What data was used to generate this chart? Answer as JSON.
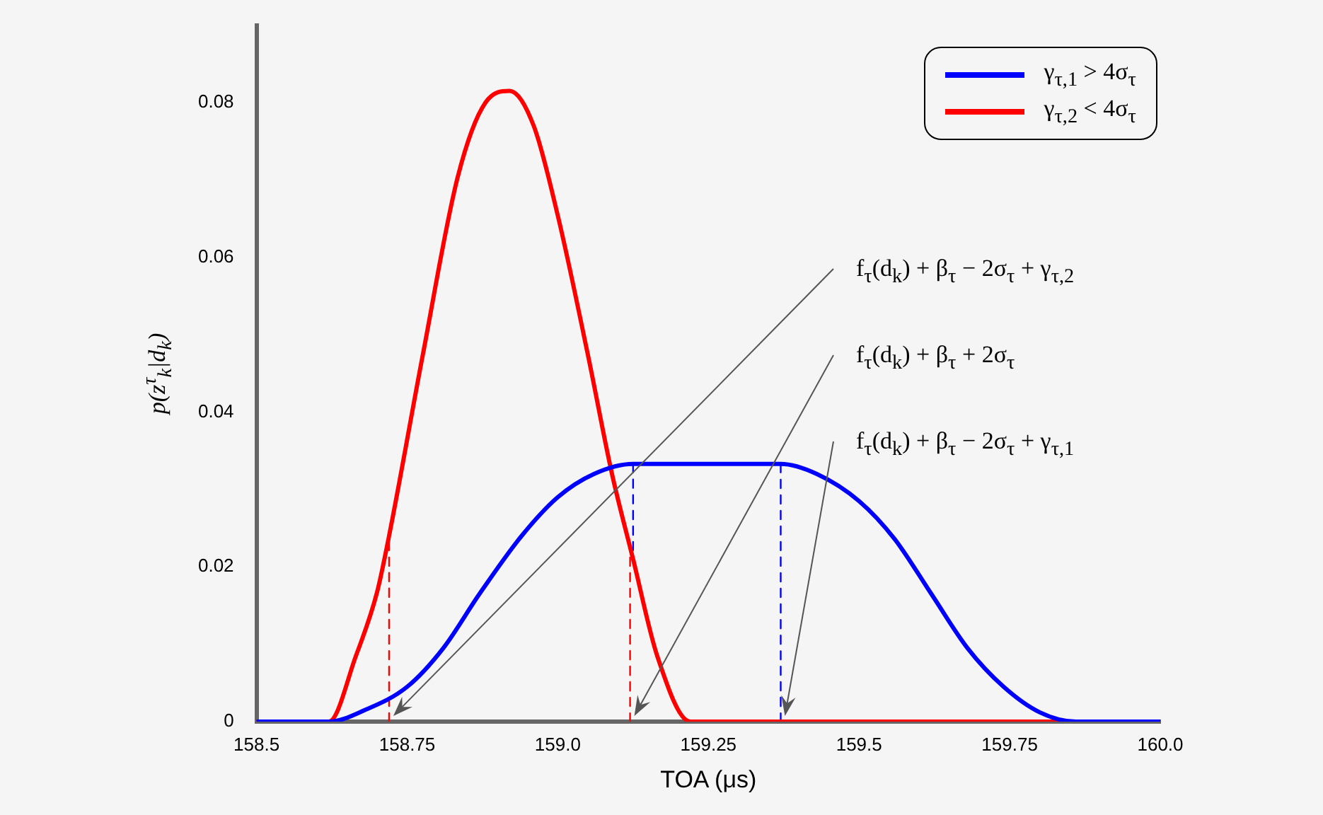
{
  "chart_data": {
    "type": "line",
    "xlabel": "TOA (μs)",
    "ylabel": "p(z$^{τ}$$_{k}$|d$_{k}$)",
    "xlim": [
      158.5,
      160.0
    ],
    "ylim": [
      0,
      0.09
    ],
    "xticks": [
      158.5,
      158.75,
      {
        "value": 159,
        "label": "159.0"
      },
      159.25,
      159.5,
      159.75,
      {
        "value": 160,
        "label": "160.0"
      }
    ],
    "yticks": [
      0,
      0.02,
      0.04,
      0.06,
      0.08
    ],
    "grid": false,
    "legend": "top right",
    "marker": "none",
    "line_style": "solid",
    "series": [
      {
        "name": "γ$_{τ,1}$ > 4σ$_{τ}$",
        "color": "#0000ff",
        "x": [
          158.5,
          158.62,
          158.68,
          158.75,
          158.81,
          158.87,
          158.94,
          159.0,
          159.06,
          159.125,
          159.37,
          159.43,
          159.5,
          159.56,
          159.62,
          159.68,
          159.74,
          159.8,
          159.86,
          160.0
        ],
        "values": [
          0,
          0,
          0.0015,
          0.0045,
          0.0095,
          0.0165,
          0.024,
          0.029,
          0.032,
          0.0333,
          0.0333,
          0.032,
          0.0285,
          0.0235,
          0.0165,
          0.0095,
          0.0045,
          0.0012,
          0,
          0
        ]
      },
      {
        "name": "γ$_{τ,2}$ < 4σ$_{τ}$",
        "color": "#ff0000",
        "x": [
          158.5,
          158.62,
          158.665,
          158.7,
          158.72,
          158.776,
          158.834,
          158.88,
          158.92,
          158.96,
          159.0,
          159.05,
          159.09,
          159.125,
          159.165,
          159.22,
          160.0
        ],
        "values": [
          0,
          0,
          0.0085,
          0.0167,
          0.024,
          0.0474,
          0.0704,
          0.08,
          0.0815,
          0.077,
          0.0654,
          0.0474,
          0.032,
          0.021,
          0.0085,
          0,
          0
        ]
      },
      {
        "color": "#ff0000",
        "line_style": "dashed",
        "x": [
          158.72,
          158.72
        ],
        "values": [
          0,
          0.024
        ]
      },
      {
        "color": "#ff0000",
        "line_style": "dashed",
        "x": [
          159.12,
          159.12
        ],
        "values": [
          0,
          0.022
        ]
      },
      {
        "color": "#0000ff",
        "line_style": "dashed",
        "x": [
          159.125,
          159.125
        ],
        "values": [
          0.0333,
          0.022
        ]
      },
      {
        "color": "#0000ff",
        "line_style": "dashed",
        "x": [
          159.37,
          159.37
        ],
        "values": [
          0,
          0.0333
        ]
      }
    ],
    "annotations": [
      "f$_{τ}$(d$_{k}$) + β$_{τ}$ − 2σ$_{τ}$ + γ$_{τ,2}$",
      "f$_{τ}$(d$_{k}$) + β$_{τ}$ + 2σ$_{τ}$",
      "f$_{τ}$(d$_{k}$) + β$_{τ}$ − 2σ$_{τ}$ + γ$_{τ,1}$"
    ]
  }
}
